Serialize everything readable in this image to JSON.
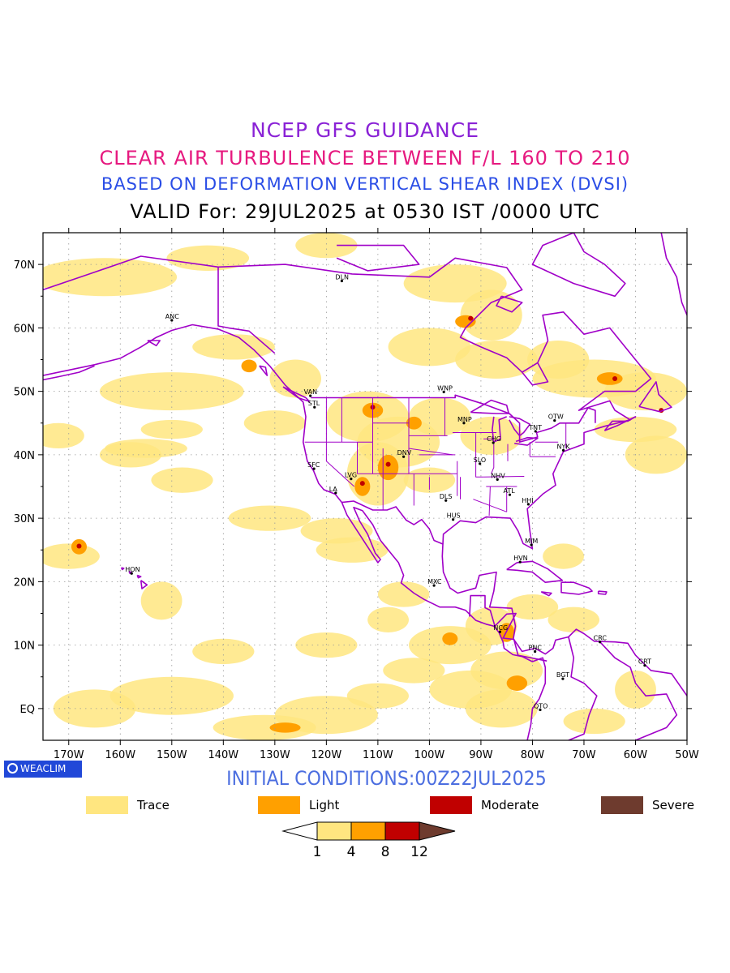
{
  "header": {
    "line1": "NCEP GFS GUIDANCE",
    "line2": "CLEAR AIR TURBULENCE BETWEEN F/L 160 TO 210",
    "line3": "BASED ON DEFORMATION VERTICAL SHEAR INDEX (DVSI)",
    "line4": "VALID For: 29JUL2025 at 0530 IST /0000 UTC"
  },
  "map": {
    "lon_range": [
      -175,
      -50
    ],
    "lat_range": [
      -5,
      75
    ],
    "lat_ticks": [
      "EQ",
      "10N",
      "20N",
      "30N",
      "40N",
      "50N",
      "60N",
      "70N"
    ],
    "lon_ticks": [
      "170W",
      "160W",
      "150W",
      "140W",
      "130W",
      "120W",
      "110W",
      "100W",
      "90W",
      "80W",
      "70W",
      "60W",
      "50W"
    ],
    "coastline_color": "#a000c8",
    "stations": [
      {
        "code": "ANC",
        "lon": -150,
        "lat": 61.2
      },
      {
        "code": "DLN",
        "lon": -117,
        "lat": 67.4
      },
      {
        "code": "VAN",
        "lon": -123.1,
        "lat": 49.3
      },
      {
        "code": "STL",
        "lon": -122.3,
        "lat": 47.5
      },
      {
        "code": "WNP",
        "lon": -97.2,
        "lat": 49.9
      },
      {
        "code": "MNP",
        "lon": -93.3,
        "lat": 45.0
      },
      {
        "code": "OTW",
        "lon": -75.7,
        "lat": 45.4
      },
      {
        "code": "TNT",
        "lon": -79.4,
        "lat": 43.7
      },
      {
        "code": "CHG",
        "lon": -87.6,
        "lat": 41.9
      },
      {
        "code": "NYK",
        "lon": -74.0,
        "lat": 40.7
      },
      {
        "code": "DNV",
        "lon": -105.0,
        "lat": 39.7
      },
      {
        "code": "SFC",
        "lon": -122.4,
        "lat": 37.8
      },
      {
        "code": "SLO",
        "lon": -90.2,
        "lat": 38.6
      },
      {
        "code": "LVG",
        "lon": -115.2,
        "lat": 36.2
      },
      {
        "code": "NHV",
        "lon": -86.8,
        "lat": 36.1
      },
      {
        "code": "LA",
        "lon": -118.2,
        "lat": 34.0
      },
      {
        "code": "ATL",
        "lon": -84.4,
        "lat": 33.7
      },
      {
        "code": "DLS",
        "lon": -96.8,
        "lat": 32.8
      },
      {
        "code": "HHI",
        "lon": -80.8,
        "lat": 32.2
      },
      {
        "code": "HUS",
        "lon": -95.4,
        "lat": 29.8
      },
      {
        "code": "MIM",
        "lon": -80.2,
        "lat": 25.8
      },
      {
        "code": "HON",
        "lon": -157.8,
        "lat": 21.3
      },
      {
        "code": "HVN",
        "lon": -82.4,
        "lat": 23.1
      },
      {
        "code": "MXC",
        "lon": -99.1,
        "lat": 19.4
      },
      {
        "code": "NCG",
        "lon": -86.3,
        "lat": 12.1
      },
      {
        "code": "CRC",
        "lon": -66.9,
        "lat": 10.5
      },
      {
        "code": "PNC",
        "lon": -79.5,
        "lat": 9.0
      },
      {
        "code": "GRT",
        "lon": -58.2,
        "lat": 6.8
      },
      {
        "code": "BGT",
        "lon": -74.1,
        "lat": 4.7
      },
      {
        "code": "QTO",
        "lon": -78.5,
        "lat": -0.2
      }
    ]
  },
  "footer": {
    "badge": "WEACLIM",
    "initial_conditions": "INITIAL CONDITIONS:00Z22JUL2025"
  },
  "legend": [
    {
      "label": "Trace",
      "color": "#ffe680"
    },
    {
      "label": "Light",
      "color": "#ffa000"
    },
    {
      "label": "Moderate",
      "color": "#c00000"
    },
    {
      "label": "Severe",
      "color": "#6e3b2e"
    }
  ],
  "colorbar": {
    "ticks": [
      "1",
      "4",
      "8",
      "12"
    ],
    "colors": [
      "#ffffff",
      "#ffe680",
      "#ffa000",
      "#c00000",
      "#6e3b2e"
    ]
  }
}
